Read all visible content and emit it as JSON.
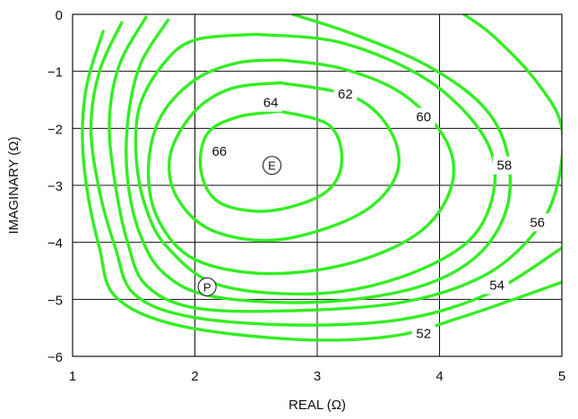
{
  "chart_data": {
    "type": "contour",
    "xlabel": "REAL (Ω)",
    "ylabel": "IMAGINARY (Ω)",
    "xlim": [
      1,
      5
    ],
    "ylim": [
      -6,
      0
    ],
    "x_ticks": [
      "1",
      "2",
      "3",
      "4",
      "5"
    ],
    "y_ticks": [
      "0",
      "−1",
      "−2",
      "−3",
      "−4",
      "−5",
      "−6"
    ],
    "grid": true,
    "line_color": "#33ee22",
    "contours": [
      {
        "level": "66",
        "label_at": [
          2.2,
          -2.4
        ],
        "points": [
          [
            2.7,
            -1.7
          ],
          [
            3.1,
            -1.95
          ],
          [
            3.2,
            -2.6
          ],
          [
            3.05,
            -3.15
          ],
          [
            2.6,
            -3.45
          ],
          [
            2.2,
            -3.3
          ],
          [
            2.05,
            -2.75
          ],
          [
            2.1,
            -2.1
          ],
          [
            2.35,
            -1.8
          ],
          [
            2.7,
            -1.7
          ]
        ]
      },
      {
        "level": "64",
        "label_at": [
          2.62,
          -1.55
        ],
        "points": [
          [
            2.7,
            -1.2
          ],
          [
            3.3,
            -1.45
          ],
          [
            3.6,
            -2.05
          ],
          [
            3.65,
            -2.8
          ],
          [
            3.35,
            -3.5
          ],
          [
            2.7,
            -3.95
          ],
          [
            2.15,
            -3.8
          ],
          [
            1.85,
            -3.2
          ],
          [
            1.8,
            -2.45
          ],
          [
            2.0,
            -1.7
          ],
          [
            2.3,
            -1.3
          ],
          [
            2.7,
            -1.2
          ]
        ]
      },
      {
        "level": "62",
        "label_at": [
          3.23,
          -1.4
        ],
        "points": [
          [
            2.7,
            -0.8
          ],
          [
            3.2,
            -0.95
          ],
          [
            3.7,
            -1.4
          ],
          [
            4.05,
            -2.2
          ],
          [
            4.1,
            -3.0
          ],
          [
            3.85,
            -3.8
          ],
          [
            3.3,
            -4.35
          ],
          [
            2.6,
            -4.55
          ],
          [
            2.0,
            -4.3
          ],
          [
            1.7,
            -3.6
          ],
          [
            1.62,
            -2.7
          ],
          [
            1.72,
            -1.8
          ],
          [
            2.0,
            -1.15
          ],
          [
            2.35,
            -0.85
          ],
          [
            2.7,
            -0.8
          ]
        ]
      },
      {
        "level": "60",
        "label_at": [
          3.87,
          -1.8
        ],
        "points": [
          [
            2.5,
            -0.35
          ],
          [
            3.2,
            -0.5
          ],
          [
            3.9,
            -1.15
          ],
          [
            4.35,
            -2.1
          ],
          [
            4.45,
            -3.0
          ],
          [
            4.25,
            -3.95
          ],
          [
            3.7,
            -4.6
          ],
          [
            3.0,
            -4.9
          ],
          [
            2.2,
            -4.75
          ],
          [
            1.78,
            -4.1
          ],
          [
            1.6,
            -3.4
          ],
          [
            1.52,
            -2.5
          ],
          [
            1.55,
            -1.6
          ],
          [
            1.75,
            -0.85
          ],
          [
            2.0,
            -0.45
          ],
          [
            2.5,
            -0.35
          ]
        ]
      },
      {
        "level": "58",
        "label_at": [
          4.53,
          -2.65
        ],
        "points": [
          [
            1.78,
            -0.1
          ],
          [
            1.55,
            -0.9
          ],
          [
            1.45,
            -1.9
          ],
          [
            1.45,
            -2.9
          ],
          [
            1.55,
            -3.85
          ],
          [
            1.75,
            -4.55
          ],
          [
            2.15,
            -4.95
          ],
          [
            3.0,
            -5.05
          ],
          [
            3.8,
            -4.8
          ],
          [
            4.3,
            -4.25
          ],
          [
            4.55,
            -3.4
          ],
          [
            4.55,
            -2.4
          ],
          [
            4.35,
            -1.6
          ],
          [
            3.9,
            -0.9
          ],
          [
            3.3,
            -0.35
          ],
          [
            2.8,
            0.0
          ]
        ]
      },
      {
        "level": "56",
        "label_at": [
          4.8,
          -3.65
        ],
        "points": [
          [
            1.6,
            -0.05
          ],
          [
            1.38,
            -0.9
          ],
          [
            1.3,
            -1.9
          ],
          [
            1.35,
            -3.0
          ],
          [
            1.45,
            -4.0
          ],
          [
            1.6,
            -4.75
          ],
          [
            2.0,
            -5.15
          ],
          [
            2.8,
            -5.2
          ],
          [
            3.7,
            -5.05
          ],
          [
            4.35,
            -4.6
          ],
          [
            4.75,
            -3.9
          ],
          [
            4.95,
            -3.1
          ],
          [
            5.0,
            -2.0
          ],
          [
            4.8,
            -1.2
          ],
          [
            4.45,
            -0.4
          ],
          [
            4.2,
            0.0
          ]
        ]
      },
      {
        "level": "54",
        "label_at": [
          4.47,
          -4.75
        ],
        "points": [
          [
            1.4,
            -0.15
          ],
          [
            1.22,
            -1.0
          ],
          [
            1.15,
            -2.0
          ],
          [
            1.22,
            -3.1
          ],
          [
            1.35,
            -4.1
          ],
          [
            1.5,
            -4.9
          ],
          [
            1.95,
            -5.3
          ],
          [
            2.8,
            -5.45
          ],
          [
            3.7,
            -5.35
          ],
          [
            4.4,
            -4.9
          ],
          [
            5.0,
            -4.1
          ]
        ]
      },
      {
        "level": "52",
        "label_at": [
          3.87,
          -5.6
        ],
        "points": [
          [
            1.25,
            -0.3
          ],
          [
            1.12,
            -1.2
          ],
          [
            1.08,
            -2.1
          ],
          [
            1.12,
            -3.1
          ],
          [
            1.22,
            -4.1
          ],
          [
            1.35,
            -4.95
          ],
          [
            1.85,
            -5.45
          ],
          [
            2.8,
            -5.7
          ],
          [
            3.6,
            -5.65
          ],
          [
            4.2,
            -5.3
          ],
          [
            5.0,
            -4.7
          ]
        ]
      }
    ],
    "markers": [
      {
        "label": "E",
        "x": 2.63,
        "y": -2.65
      },
      {
        "label": "P",
        "x": 2.1,
        "y": -4.78
      }
    ]
  }
}
